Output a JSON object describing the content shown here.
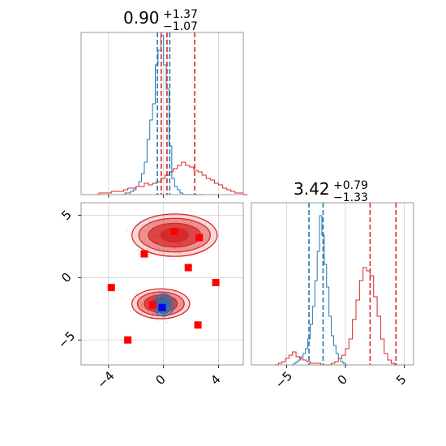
{
  "chart_data": {
    "type": "corner",
    "colors": {
      "blue": "#1f77b4",
      "red": "#d62728",
      "marker_red": "#ff0000",
      "marker_blue": "#0000ff"
    },
    "panels": [
      {
        "id": "hist_x",
        "type": "histogram",
        "title": {
          "value": "0.90",
          "plus": "+1.37",
          "minus": "−1.07"
        },
        "xlim": [
          -6,
          5.8
        ],
        "ylim": [
          0,
          1
        ],
        "x_ticks": [
          -4,
          0,
          4
        ],
        "series": [
          {
            "name": "",
            "color": "#1f77b4",
            "bin_start": -3.0,
            "bin_width": 0.2,
            "counts": [
              0.0,
              0.01,
              0.01,
              0.02,
              0.03,
              0.05,
              0.08,
              0.13,
              0.2,
              0.34,
              0.46,
              0.56,
              0.8,
              0.89,
              0.98,
              0.8,
              0.65,
              0.3,
              0.1,
              0.05,
              0.03,
              0.01,
              0.0,
              0.0,
              0.0,
              0.0,
              0.0,
              0.0,
              0.0,
              0.0
            ],
            "quantiles": [
              -0.45,
              0.45
            ]
          },
          {
            "name": "",
            "color": "#d62728",
            "bin_start": -5.0,
            "bin_width": 0.3,
            "counts": [
              0.0,
              0.01,
              0.01,
              0.01,
              0.02,
              0.02,
              0.02,
              0.03,
              0.04,
              0.04,
              0.05,
              0.05,
              0.07,
              0.06,
              0.07,
              0.08,
              0.1,
              0.12,
              0.14,
              0.16,
              0.18,
              0.2,
              0.18,
              0.17,
              0.15,
              0.14,
              0.12,
              0.1,
              0.09,
              0.07,
              0.06,
              0.04,
              0.03,
              0.02,
              0.01,
              0.01,
              0.0
            ],
            "quantiles": [
              -0.17,
              0.25,
              2.27
            ]
          }
        ]
      },
      {
        "id": "scatter_xy",
        "type": "scatter_density",
        "xlim": [
          -6,
          5.8
        ],
        "ylim": [
          -7,
          6
        ],
        "x_ticks": [
          -4,
          0,
          4
        ],
        "x_tick_labels": [
          "−4",
          "0",
          "4"
        ],
        "y_ticks": [
          -5,
          0,
          5
        ],
        "y_tick_labels": [
          "−5",
          "0",
          "5"
        ],
        "red_blobs": [
          {
            "cx": 0.8,
            "cy": 3.4,
            "levels": [
              [
                3.1,
                1.7
              ],
              [
                2.6,
                1.35
              ],
              [
                1.9,
                0.95
              ],
              [
                1.0,
                0.55
              ]
            ]
          },
          {
            "cx": -0.2,
            "cy": -2.1,
            "levels": [
              [
                2.1,
                1.2
              ],
              [
                1.7,
                0.95
              ],
              [
                1.2,
                0.7
              ],
              [
                0.7,
                0.45
              ]
            ]
          }
        ],
        "blue_blob": {
          "cx": 0.0,
          "cy": -2.2,
          "levels": [
            [
              0.75,
              0.9
            ],
            [
              0.55,
              0.7
            ],
            [
              0.35,
              0.45
            ],
            [
              0.18,
              0.25
            ]
          ]
        },
        "red_markers": [
          {
            "x": 0.8,
            "y": 3.7
          },
          {
            "x": 2.6,
            "y": 3.2
          },
          {
            "x": -1.4,
            "y": 1.9
          },
          {
            "x": 1.8,
            "y": 0.8
          },
          {
            "x": 3.8,
            "y": -0.4
          },
          {
            "x": -3.8,
            "y": -0.8
          },
          {
            "x": -0.8,
            "y": -2.2
          },
          {
            "x": 2.5,
            "y": -3.8
          },
          {
            "x": -2.6,
            "y": -5.0
          }
        ],
        "blue_marker": {
          "x": -0.1,
          "y": -2.4
        }
      },
      {
        "id": "hist_y",
        "type": "histogram",
        "title": {
          "value": "3.42",
          "plus": "+0.79",
          "minus": "−1.33"
        },
        "xlim": [
          -8,
          5.8
        ],
        "ylim": [
          0,
          1
        ],
        "x_ticks": [
          -5,
          0,
          5
        ],
        "x_tick_labels": [
          "−5",
          "0",
          "5"
        ],
        "series": [
          {
            "name": "",
            "color": "#1f77b4",
            "bin_start": -4.6,
            "bin_width": 0.2,
            "counts": [
              0.0,
              0.01,
              0.02,
              0.03,
              0.05,
              0.07,
              0.1,
              0.16,
              0.25,
              0.36,
              0.52,
              0.7,
              0.92,
              0.8,
              0.62,
              0.48,
              0.3,
              0.18,
              0.12,
              0.07,
              0.04,
              0.02,
              0.01,
              0.0
            ],
            "quantiles": [
              -3.1,
              -1.9
            ]
          },
          {
            "name": "",
            "color": "#d62728",
            "bin_start": -6.0,
            "bin_width": 0.3,
            "counts": [
              0.0,
              0.01,
              0.02,
              0.04,
              0.06,
              0.08,
              0.05,
              0.04,
              0.03,
              0.02,
              0.01,
              0.01,
              0.01,
              0.0,
              0.0,
              0.0,
              0.01,
              0.02,
              0.04,
              0.06,
              0.1,
              0.16,
              0.28,
              0.4,
              0.52,
              0.6,
              0.58,
              0.55,
              0.42,
              0.3,
              0.16,
              0.07,
              0.03,
              0.01,
              0.0
            ],
            "quantiles": [
              2.1,
              4.3
            ]
          }
        ]
      }
    ]
  }
}
